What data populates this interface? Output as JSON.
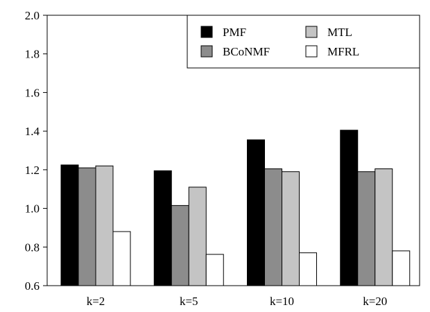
{
  "chart_data": {
    "type": "bar",
    "categories": [
      "k=2",
      "k=5",
      "k=10",
      "k=20"
    ],
    "series": [
      {
        "name": "PMF",
        "color": "#000000",
        "values": [
          1.225,
          1.195,
          1.355,
          1.405
        ]
      },
      {
        "name": "BCoNMF",
        "color": "#8c8c8c",
        "values": [
          1.21,
          1.015,
          1.205,
          1.19
        ]
      },
      {
        "name": "MTL",
        "color": "#c4c4c4",
        "values": [
          1.22,
          1.11,
          1.19,
          1.205
        ]
      },
      {
        "name": "MFRL",
        "color": "#ffffff",
        "values": [
          0.88,
          0.762,
          0.77,
          0.78
        ]
      }
    ],
    "title": "",
    "xlabel": "",
    "ylabel": "",
    "ylim": [
      0.6,
      2.0
    ],
    "yticks": [
      "0.6",
      "0.8",
      "1.0",
      "1.2",
      "1.4",
      "1.6",
      "1.8",
      "2.0"
    ],
    "grid": false,
    "legend_position": "top-right"
  }
}
